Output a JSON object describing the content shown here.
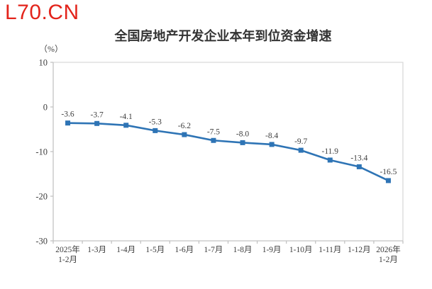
{
  "logo": {
    "text": "L70.CN",
    "color": "#e3241b"
  },
  "chart_data": {
    "type": "line",
    "title": "全国房地产开发企业本年到位资金增速",
    "unit": "（%）",
    "categories": [
      "2025年\n1-2月",
      "1-3月",
      "1-4月",
      "1-5月",
      "1-6月",
      "1-7月",
      "1-8月",
      "1-9月",
      "1-10月",
      "1-11月",
      "1-12月",
      "2026年\n1-2月"
    ],
    "values": [
      -3.6,
      -3.7,
      -4.1,
      -5.3,
      -6.2,
      -7.5,
      -8.0,
      -8.4,
      -9.7,
      -11.9,
      -13.4,
      -16.5
    ],
    "data_labels": [
      "-3.6",
      "-3.7",
      "-4.1",
      "-5.3",
      "-6.2",
      "-7.5",
      "-8.0",
      "-8.4",
      "-9.7",
      "-11.9",
      "-13.4",
      "-16.5"
    ],
    "ylim": [
      -30,
      10
    ],
    "yticks": [
      10,
      0,
      -10,
      -20,
      -30
    ],
    "grid": false,
    "legend": "none",
    "line_color": "#2e74b5",
    "marker": "square",
    "label_color": "#3d3d3d",
    "axis_color": "#c3c3c3",
    "border_color": "#d9d9d9"
  }
}
